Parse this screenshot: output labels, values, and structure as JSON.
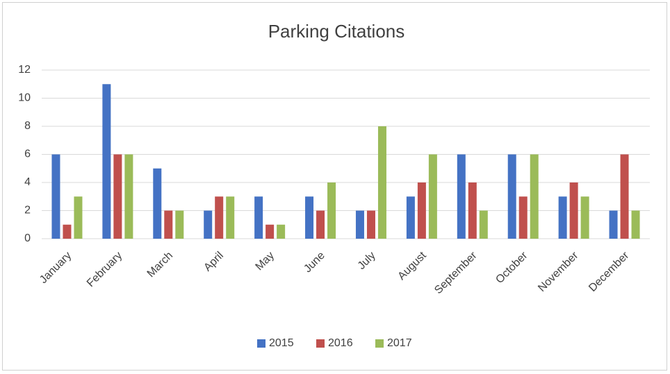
{
  "chart_data": {
    "type": "bar",
    "title": "Parking Citations",
    "categories": [
      "January",
      "February",
      "March",
      "April",
      "May",
      "June",
      "July",
      "August",
      "September",
      "October",
      "November",
      "December"
    ],
    "series": [
      {
        "name": "2015",
        "color": "#4472c4",
        "values": [
          6,
          11,
          5,
          2,
          3,
          3,
          2,
          3,
          6,
          6,
          3,
          2
        ]
      },
      {
        "name": "2016",
        "color": "#c0504d",
        "values": [
          1,
          6,
          2,
          3,
          1,
          2,
          2,
          4,
          4,
          3,
          4,
          6
        ]
      },
      {
        "name": "2017",
        "color": "#9bbb59",
        "values": [
          3,
          6,
          2,
          3,
          1,
          4,
          8,
          6,
          2,
          6,
          3,
          2
        ]
      }
    ],
    "ylim": [
      0,
      12
    ],
    "yticks": [
      0,
      2,
      4,
      6,
      8,
      10,
      12
    ],
    "grid": true,
    "legend": "bottom"
  }
}
